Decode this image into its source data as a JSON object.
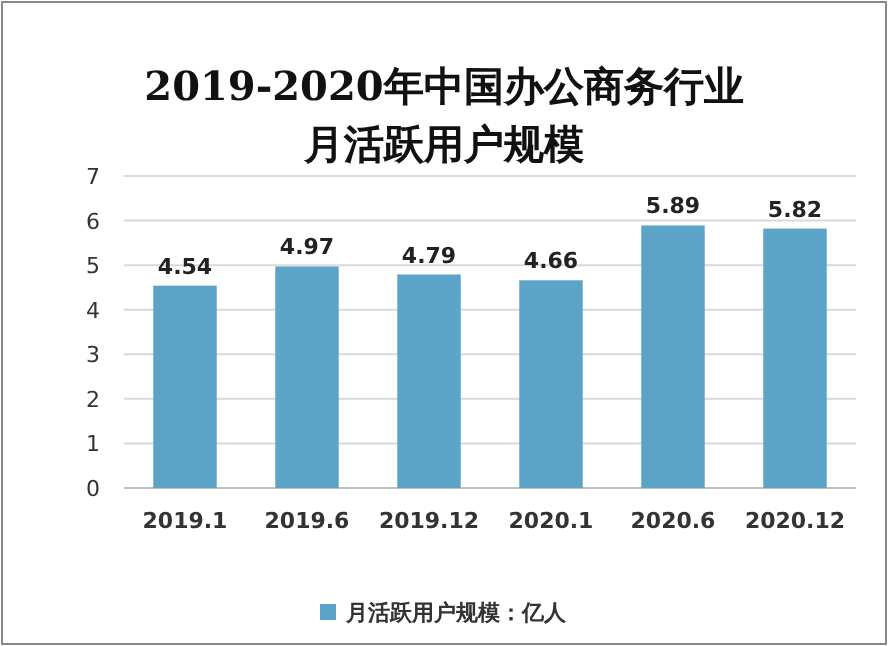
{
  "chart_data": {
    "type": "bar",
    "title": "2019-2020年中国办公商务行业月活跃用户规模",
    "categories": [
      "2019.1",
      "2019.6",
      "2019.12",
      "2020.1",
      "2020.6",
      "2020.12"
    ],
    "series": [
      {
        "name": "月活跃用户规模：亿人",
        "color": "#5ba3c7",
        "values": [
          4.54,
          4.97,
          4.79,
          4.66,
          5.89,
          5.82
        ]
      }
    ],
    "ylim": [
      0,
      7
    ],
    "yticks": [
      0,
      1,
      2,
      3,
      4,
      5,
      6,
      7
    ],
    "grid": "y",
    "data_labels": true,
    "legend": "bottom"
  }
}
